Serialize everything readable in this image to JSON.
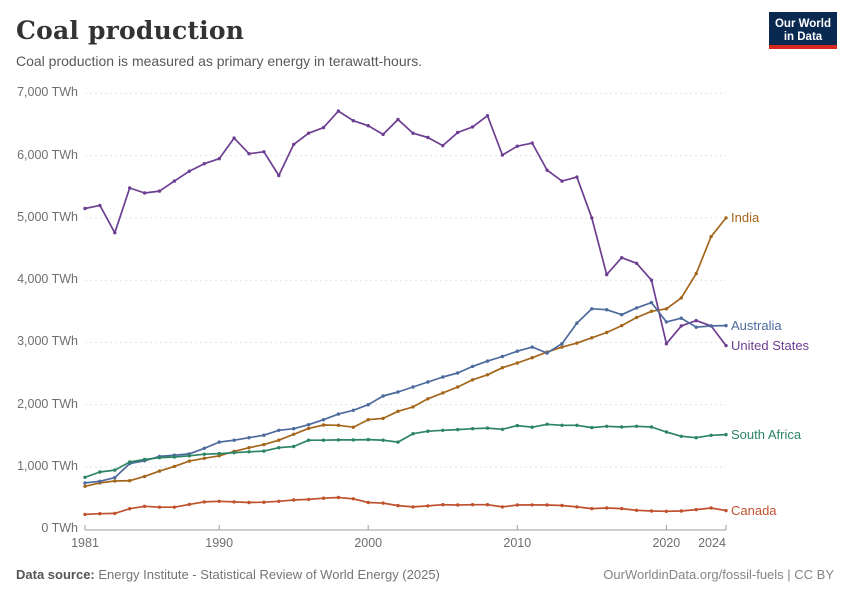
{
  "header": {
    "title": "Coal production",
    "subtitle": "Coal production is measured as primary energy in terawatt-hours."
  },
  "logo": {
    "line1": "Our World",
    "line2": "in Data",
    "bg": "#0A2951",
    "accent": "#D7281F"
  },
  "footer": {
    "datasource_label": "Data source:",
    "datasource_value": " Energy Institute - Statistical Review of World Energy (2025)",
    "rights": "OurWorldinData.org/fossil-fuels | CC BY"
  },
  "chart_data": {
    "type": "line",
    "title": "Coal production",
    "unit": "TWh",
    "ylim": [
      0,
      7000
    ],
    "y_tick_step": 1000,
    "grid": "dashed-horizontal",
    "legend_position": "right-of-line-ends",
    "x": [
      1981,
      1982,
      1983,
      1984,
      1985,
      1986,
      1987,
      1988,
      1989,
      1990,
      1991,
      1992,
      1993,
      1994,
      1995,
      1996,
      1997,
      1998,
      1999,
      2000,
      2001,
      2002,
      2003,
      2004,
      2005,
      2006,
      2007,
      2008,
      2009,
      2010,
      2011,
      2012,
      2013,
      2014,
      2015,
      2016,
      2017,
      2018,
      2019,
      2020,
      2021,
      2022,
      2023,
      2024
    ],
    "x_tick_years": [
      1981,
      1990,
      2000,
      2010,
      2020,
      2024
    ],
    "series": [
      {
        "name": "United States",
        "color": "#6D3E91",
        "values": [
          5150,
          5200,
          4760,
          5480,
          5400,
          5430,
          5590,
          5750,
          5870,
          5950,
          6280,
          6030,
          6060,
          5680,
          6180,
          6360,
          6450,
          6715,
          6560,
          6480,
          6340,
          6580,
          6360,
          6290,
          6160,
          6370,
          6460,
          6640,
          6010,
          6150,
          6200,
          5765,
          5590,
          5655,
          5000,
          4090,
          4360,
          4270,
          4000,
          2980,
          3265,
          3350,
          3265,
          2950
        ]
      },
      {
        "name": "India",
        "color": "#A4661B",
        "values": [
          690,
          745,
          775,
          780,
          850,
          935,
          1010,
          1095,
          1140,
          1180,
          1250,
          1310,
          1360,
          1430,
          1525,
          1620,
          1675,
          1670,
          1640,
          1760,
          1780,
          1895,
          1965,
          2095,
          2190,
          2285,
          2400,
          2480,
          2595,
          2670,
          2755,
          2845,
          2925,
          2990,
          3075,
          3160,
          3270,
          3400,
          3500,
          3540,
          3715,
          4105,
          4700,
          5000
        ]
      },
      {
        "name": "Australia",
        "color": "#4C6A9C",
        "values": [
          745,
          770,
          830,
          1055,
          1100,
          1170,
          1190,
          1210,
          1300,
          1400,
          1430,
          1470,
          1510,
          1590,
          1615,
          1680,
          1760,
          1850,
          1910,
          2000,
          2140,
          2205,
          2285,
          2365,
          2445,
          2510,
          2615,
          2700,
          2775,
          2860,
          2925,
          2830,
          2980,
          3310,
          3540,
          3525,
          3445,
          3555,
          3640,
          3330,
          3390,
          3245,
          3265,
          3270
        ]
      },
      {
        "name": "South Africa",
        "color": "#2C8465",
        "values": [
          835,
          920,
          950,
          1080,
          1120,
          1150,
          1160,
          1180,
          1205,
          1215,
          1230,
          1245,
          1255,
          1310,
          1330,
          1430,
          1430,
          1435,
          1435,
          1440,
          1430,
          1400,
          1535,
          1575,
          1590,
          1600,
          1615,
          1625,
          1605,
          1665,
          1640,
          1685,
          1670,
          1670,
          1632,
          1653,
          1642,
          1653,
          1642,
          1562,
          1493,
          1471,
          1509,
          1520
        ]
      },
      {
        "name": "Canada",
        "color": "#C0512F",
        "values": [
          240,
          250,
          255,
          330,
          370,
          355,
          355,
          400,
          440,
          450,
          440,
          430,
          435,
          450,
          470,
          480,
          500,
          510,
          490,
          430,
          420,
          380,
          360,
          375,
          395,
          390,
          395,
          395,
          360,
          390,
          392,
          390,
          382,
          360,
          332,
          342,
          332,
          305,
          294,
          289,
          294,
          316,
          342,
          300
        ]
      }
    ]
  }
}
